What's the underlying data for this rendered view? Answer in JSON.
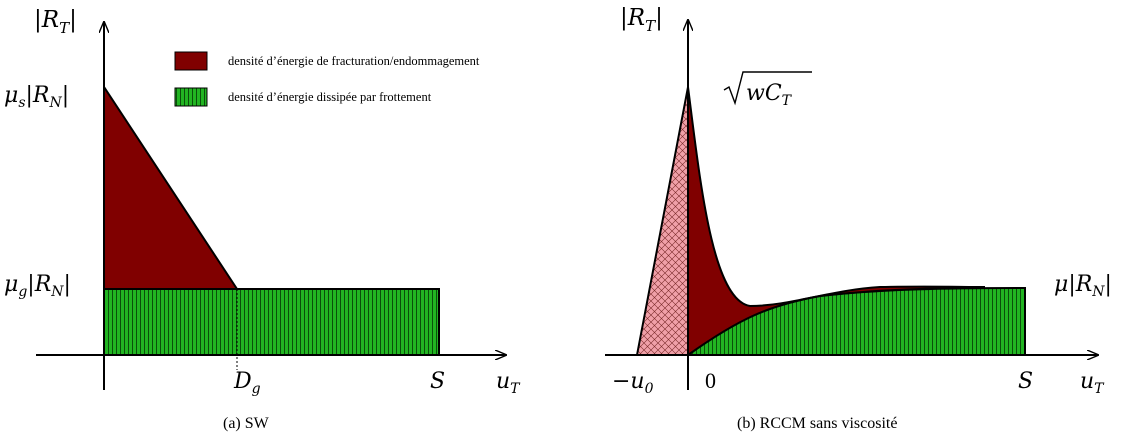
{
  "colors": {
    "fracture": "#800000",
    "friction_green": "#22b522",
    "friction_stripe": "#0a500a",
    "viscous_pink": "#f0a0a8",
    "hatch": "#7a2a2a",
    "axis": "#000000"
  },
  "legend": {
    "fracture_label": "densité d’énergie de fracturation/endommagement",
    "friction_label": "densité d’énergie dissipée par frottement"
  },
  "panel_a": {
    "caption": "(a)  SW",
    "y_axis_label": "|R",
    "y_axis_sub": "T",
    "y_axis_suffix": "|",
    "mu_s_label": "μ",
    "mu_s_sub": "s",
    "mu_s_suffix": "|R",
    "mu_s_sub2": "N",
    "mu_s_end": "|",
    "mu_g_label": "μ",
    "mu_g_sub": "g",
    "mu_g_suffix": "|R",
    "mu_g_sub2": "N",
    "mu_g_end": "|",
    "dg_label": "D",
    "dg_sub": "g",
    "s_label": "S",
    "x_axis_label": "u",
    "x_axis_sub": "T"
  },
  "panel_b": {
    "caption": "(b)  RCCM sans viscosité",
    "y_axis_label": "|R",
    "y_axis_sub": "T",
    "y_axis_suffix": "|",
    "peak_label": "wC",
    "peak_sub": "T",
    "mu_label": "μ",
    "mu_suffix": "|R",
    "mu_sub": "N",
    "mu_end": "|",
    "neg_u0_label": "−u",
    "neg_u0_sub": "0",
    "zero_label": "0",
    "s_label": "S",
    "x_axis_label": "u",
    "x_axis_sub": "T"
  }
}
